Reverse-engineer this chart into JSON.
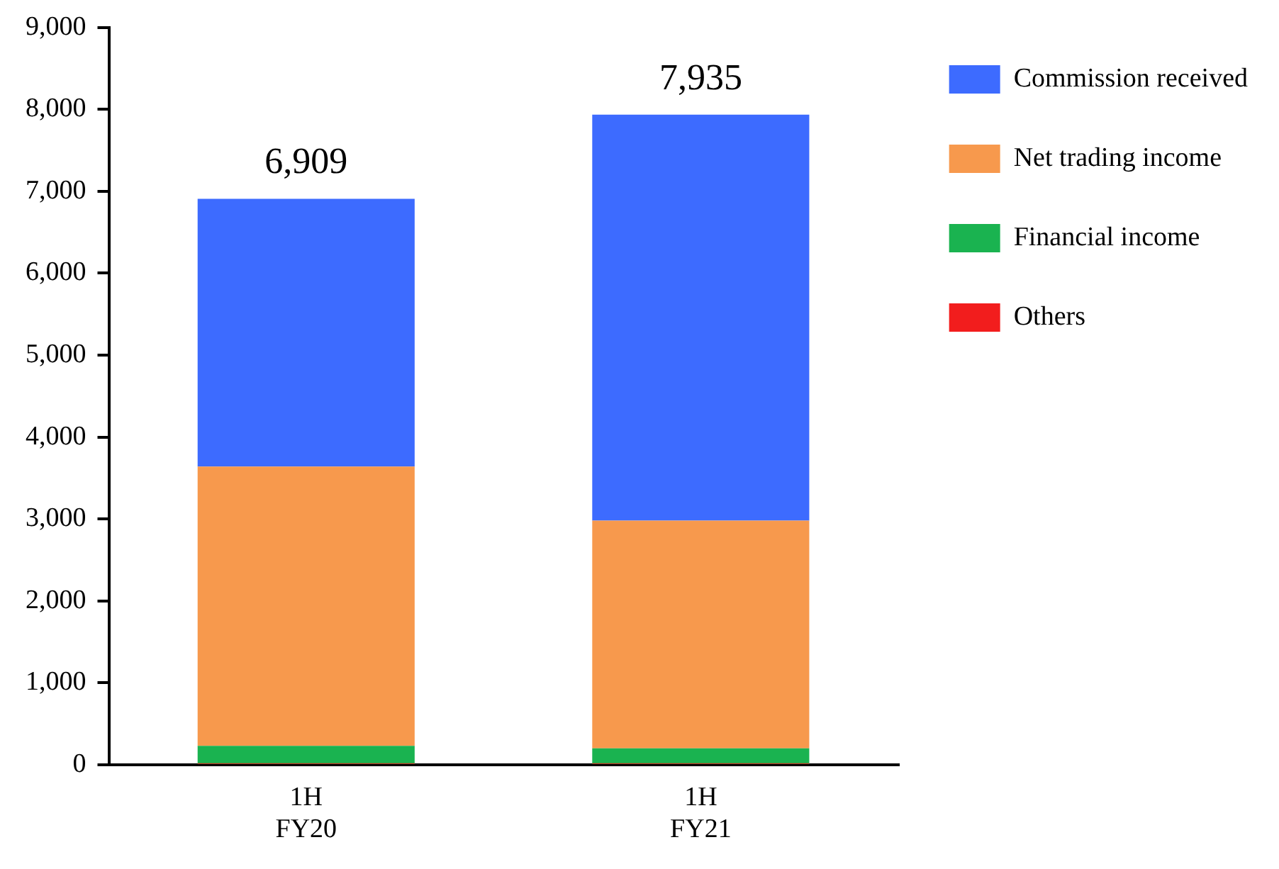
{
  "chart_data": {
    "type": "bar",
    "stacked": true,
    "categories": [
      "1H FY20",
      "1H FY21"
    ],
    "series": [
      {
        "name": "Others",
        "color": "#f21d1d",
        "values": [
          9,
          10
        ]
      },
      {
        "name": "Financial income",
        "color": "#1ab350",
        "values": [
          220,
          190
        ]
      },
      {
        "name": "Net trading income",
        "color": "#f7994d",
        "values": [
          3410,
          2780
        ]
      },
      {
        "name": "Commission received",
        "color": "#3d6bff",
        "values": [
          3270,
          4955
        ]
      }
    ],
    "ylim": [
      0,
      9000
    ],
    "yticks": [
      {
        "value": 0,
        "label": "0"
      },
      {
        "value": 1000,
        "label": "1,000"
      },
      {
        "value": 2000,
        "label": "2,000"
      },
      {
        "value": 3000,
        "label": "3,000"
      },
      {
        "value": 4000,
        "label": "4,000"
      },
      {
        "value": 5000,
        "label": "5,000"
      },
      {
        "value": 6000,
        "label": "6,000"
      },
      {
        "value": 7000,
        "label": "7,000"
      },
      {
        "value": 8000,
        "label": "8,000"
      },
      {
        "value": 9000,
        "label": "9,000"
      }
    ],
    "totals": [
      "6,909",
      "7,935"
    ],
    "grid": false,
    "legend": "right"
  }
}
